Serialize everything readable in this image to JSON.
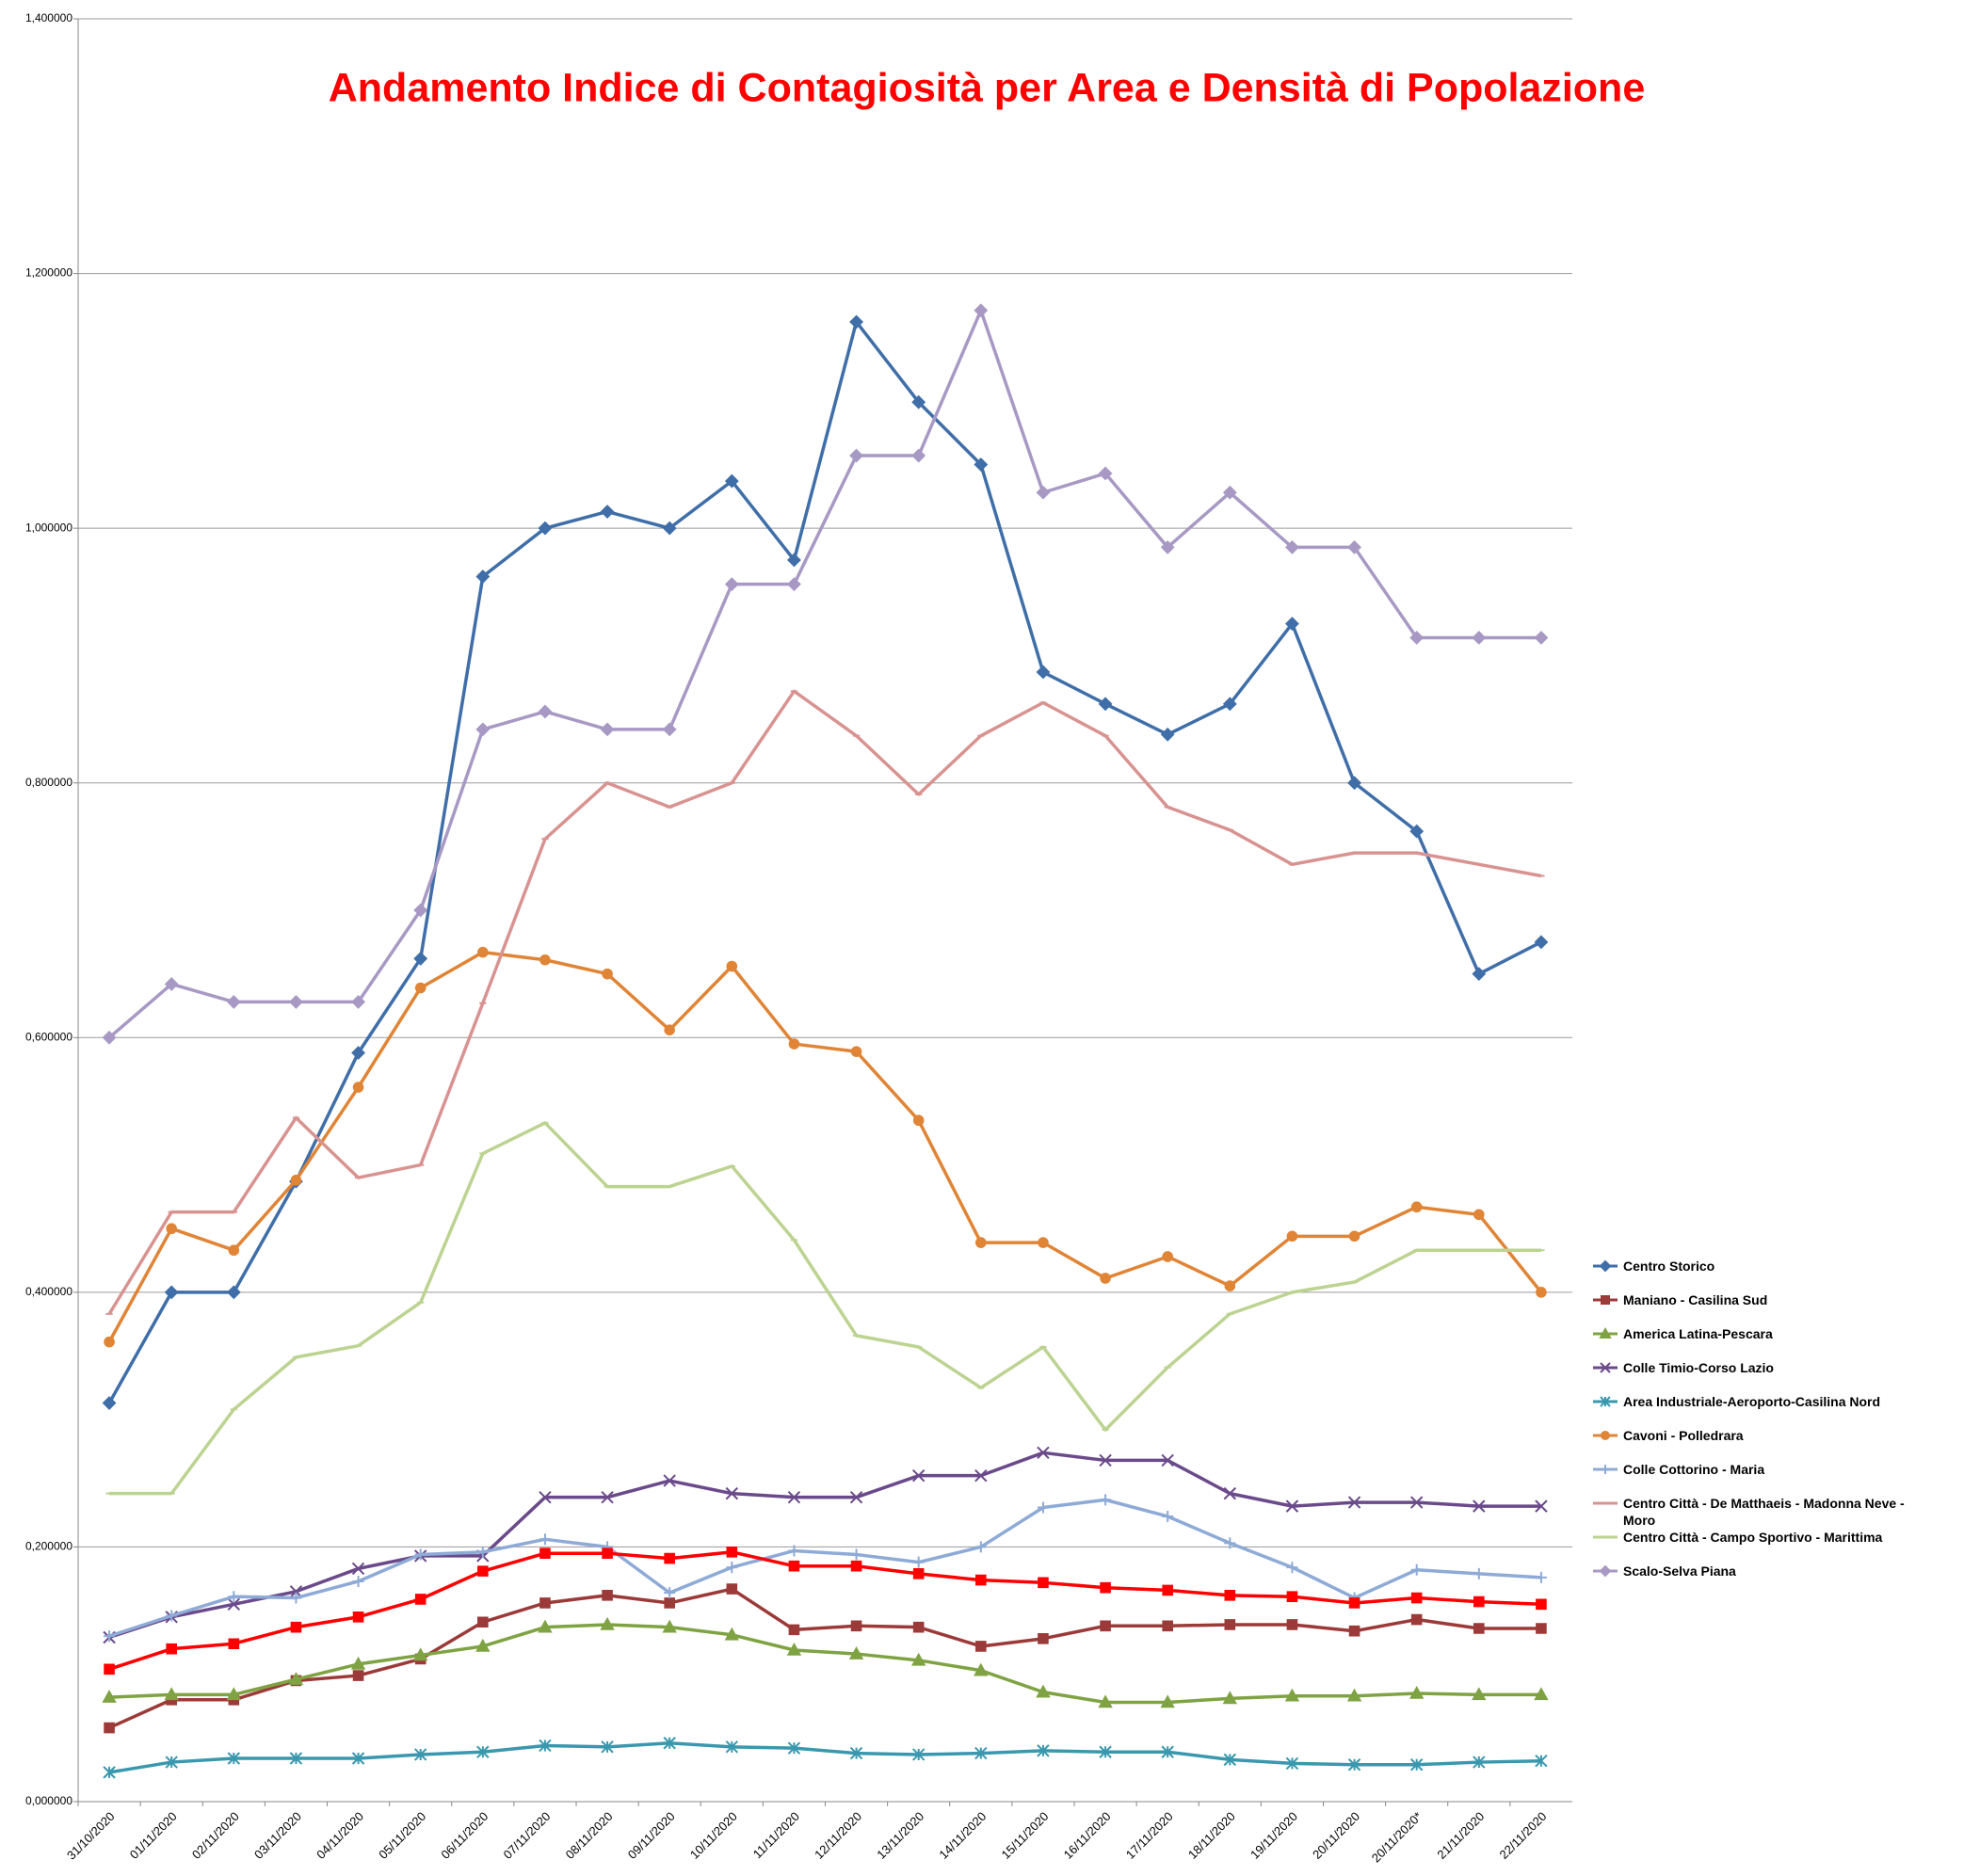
{
  "chart_data": {
    "type": "line",
    "title": "Andamento Indice di Contagiosità per Area e Densità di Popolazione",
    "categories": [
      "31/10/2020",
      "01/11/2020",
      "02/11/2020",
      "03/11/2020",
      "04/11/2020",
      "05/11/2020",
      "06/11/2020",
      "07/11/2020",
      "08/11/2020",
      "09/11/2020",
      "10/11/2020",
      "11/11/2020",
      "12/11/2020",
      "13/11/2020",
      "14/11/2020",
      "15/11/2020",
      "16/11/2020",
      "17/11/2020",
      "18/11/2020",
      "19/11/2020",
      "20/11/2020",
      "20/11/2020*",
      "21/11/2020",
      "22/11/2020"
    ],
    "ylim": [
      0,
      1.4
    ],
    "yticks": [
      {
        "value": 0,
        "label": "0,000000"
      },
      {
        "value": 0.2,
        "label": "0,200000"
      },
      {
        "value": 0.4,
        "label": "0,400000"
      },
      {
        "value": 0.6,
        "label": "0,600000"
      },
      {
        "value": 0.8,
        "label": "0,800000"
      },
      {
        "value": 1.0,
        "label": "1,000000"
      },
      {
        "value": 1.2,
        "label": "1,200000"
      },
      {
        "value": 1.4,
        "label": "1,400000"
      }
    ],
    "grid": true,
    "legend": "right",
    "series": [
      {
        "name": "Centro Storico",
        "color": "#3f6ea8",
        "marker": "diamond",
        "values": [
          0.313,
          0.4,
          0.4,
          0.487,
          0.588,
          0.662,
          0.962,
          1.0,
          1.013,
          1.0,
          1.037,
          0.975,
          1.162,
          1.099,
          1.05,
          0.887,
          0.862,
          0.838,
          0.862,
          0.925,
          0.8,
          0.762,
          0.65,
          0.675
        ]
      },
      {
        "name": "Maniano - Casilina Sud",
        "color": "#9b3a38",
        "marker": "square",
        "values": [
          0.058,
          0.08,
          0.08,
          0.095,
          0.099,
          0.112,
          0.141,
          0.156,
          0.162,
          0.156,
          0.167,
          0.135,
          0.138,
          0.137,
          0.122,
          0.128,
          0.138,
          0.138,
          0.139,
          0.139,
          0.134,
          0.143,
          0.136,
          0.136
        ]
      },
      {
        "name": "America Latina-Pescara",
        "color": "#7fa343",
        "marker": "triangle",
        "values": [
          0.082,
          0.084,
          0.084,
          0.096,
          0.108,
          0.115,
          0.122,
          0.137,
          0.139,
          0.137,
          0.131,
          0.119,
          0.116,
          0.111,
          0.103,
          0.086,
          0.078,
          0.078,
          0.081,
          0.083,
          0.083,
          0.085,
          0.084,
          0.084
        ]
      },
      {
        "name": "Colle Timio-Corso Lazio",
        "color": "#6a4a8a",
        "marker": "x",
        "values": [
          0.129,
          0.145,
          0.155,
          0.165,
          0.183,
          0.193,
          0.193,
          0.239,
          0.239,
          0.252,
          0.242,
          0.239,
          0.239,
          0.256,
          0.256,
          0.274,
          0.268,
          0.268,
          0.242,
          0.232,
          0.235,
          0.235,
          0.232,
          0.232
        ]
      },
      {
        "name": "Area Industriale-Aeroporto-Casilina Nord",
        "color": "#3a98ae",
        "marker": "star",
        "values": [
          0.023,
          0.031,
          0.034,
          0.034,
          0.034,
          0.037,
          0.039,
          0.044,
          0.043,
          0.046,
          0.043,
          0.042,
          0.038,
          0.037,
          0.038,
          0.04,
          0.039,
          0.039,
          0.033,
          0.03,
          0.029,
          0.029,
          0.031,
          0.032
        ]
      },
      {
        "name": "Cavoni - Polledrara",
        "color": "#e08436",
        "marker": "circle",
        "values": [
          0.361,
          0.45,
          0.433,
          0.488,
          0.561,
          0.639,
          0.667,
          0.661,
          0.65,
          0.606,
          0.656,
          0.595,
          0.589,
          0.535,
          0.439,
          0.439,
          0.411,
          0.428,
          0.405,
          0.444,
          0.444,
          0.467,
          0.461,
          0.4
        ]
      },
      {
        "name": "Colle Cottorino - Maria",
        "color": "#8eaad6",
        "marker": "plus",
        "values": [
          0.13,
          0.146,
          0.161,
          0.16,
          0.173,
          0.194,
          0.196,
          0.206,
          0.2,
          0.164,
          0.184,
          0.197,
          0.194,
          0.188,
          0.2,
          0.231,
          0.237,
          0.224,
          0.203,
          0.184,
          0.16,
          0.182,
          0.179,
          0.176
        ]
      },
      {
        "name": "Centro Città - De Matthaeis - Madonna Neve - Moro",
        "color": "#d89391",
        "marker": "dash",
        "values": [
          0.383,
          0.463,
          0.463,
          0.537,
          0.49,
          0.5,
          0.627,
          0.756,
          0.8,
          0.781,
          0.8,
          0.872,
          0.837,
          0.791,
          0.837,
          0.863,
          0.837,
          0.781,
          0.763,
          0.736,
          0.745,
          0.745,
          0.736,
          0.727
        ]
      },
      {
        "name": "Centro Città - Campo Sportivo - Marittima",
        "color": "#bcd391",
        "marker": "dash",
        "values": [
          0.242,
          0.242,
          0.308,
          0.349,
          0.358,
          0.392,
          0.509,
          0.533,
          0.483,
          0.483,
          0.499,
          0.441,
          0.366,
          0.357,
          0.325,
          0.357,
          0.292,
          0.341,
          0.383,
          0.4,
          0.408,
          0.433,
          0.433,
          0.433
        ]
      },
      {
        "name": "Scalo-Selva Piana",
        "color": "#a899c4",
        "marker": "diamond",
        "values": [
          0.6,
          0.642,
          0.628,
          0.628,
          0.628,
          0.7,
          0.842,
          0.856,
          0.842,
          0.842,
          0.956,
          0.956,
          1.057,
          1.057,
          1.171,
          1.028,
          1.043,
          0.985,
          1.028,
          0.985,
          0.985,
          0.914,
          0.914,
          0.914
        ]
      },
      {
        "color": "#ff0000",
        "marker": "square",
        "values": [
          0.104,
          0.12,
          0.124,
          0.137,
          0.145,
          0.159,
          0.181,
          0.195,
          0.195,
          0.191,
          0.196,
          0.185,
          0.185,
          0.179,
          0.174,
          0.172,
          0.168,
          0.166,
          0.162,
          0.161,
          0.156,
          0.16,
          0.157,
          0.155
        ]
      }
    ]
  }
}
